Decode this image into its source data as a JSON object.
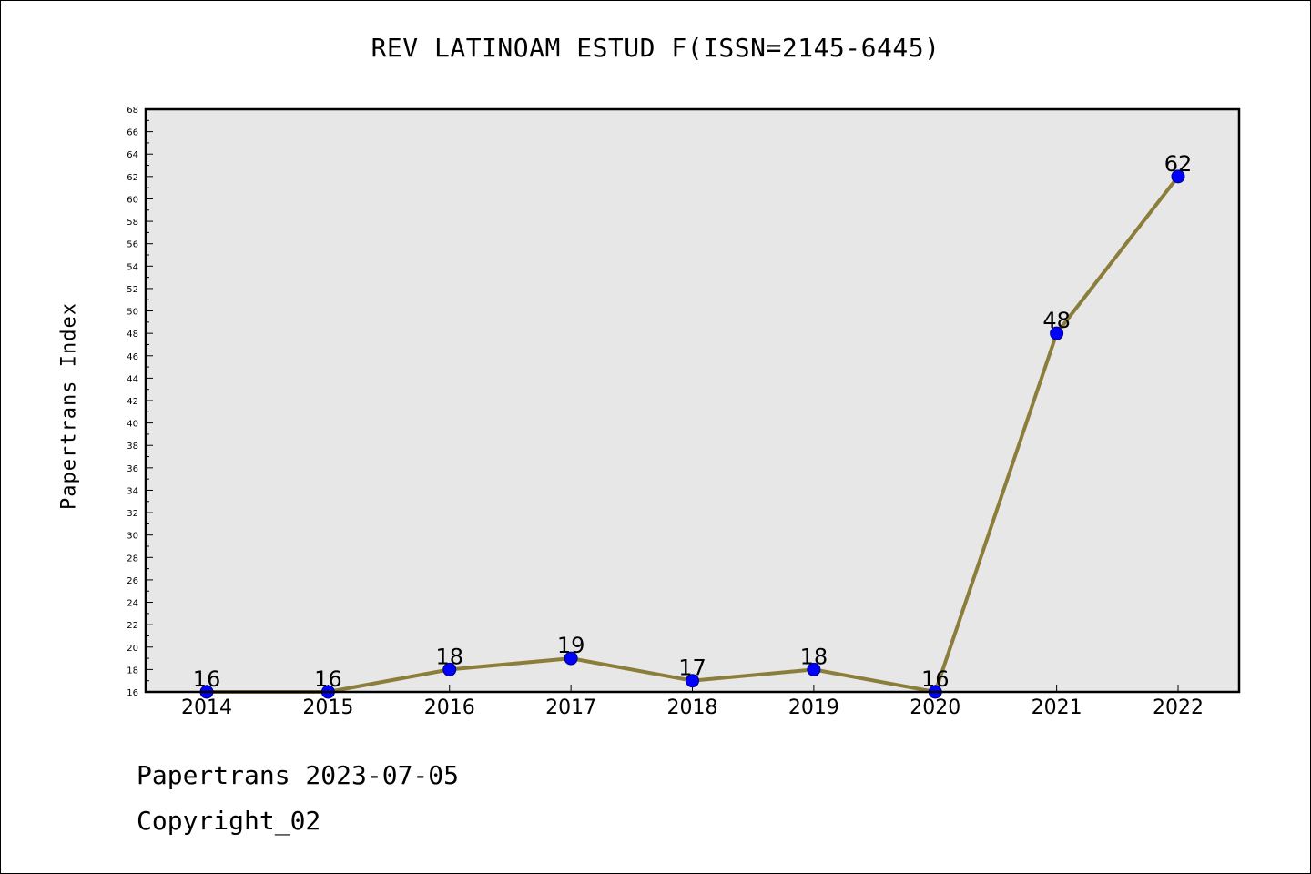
{
  "page": {
    "title": "REV LATINOAM ESTUD F(ISSN=2145-6445)",
    "footer_line1": "Papertrans 2023-07-05",
    "footer_line2": "Copyright_02"
  },
  "chart_data": {
    "type": "line",
    "title": "REV LATINOAM ESTUD F(ISSN=2145-6445)",
    "xlabel": "",
    "ylabel": "Papertrans Index",
    "categories": [
      "2014",
      "2015",
      "2016",
      "2017",
      "2018",
      "2019",
      "2020",
      "2021",
      "2022"
    ],
    "series": [
      {
        "values": [
          16,
          16,
          18,
          19,
          17,
          18,
          16,
          48,
          62
        ]
      }
    ],
    "data_labels": [
      "16",
      "16",
      "18",
      "19",
      "17",
      "18",
      "16",
      "48",
      "62"
    ],
    "ylim": [
      16,
      68
    ],
    "yticks": [
      16,
      18,
      20,
      22,
      24,
      26,
      28,
      30,
      32,
      34,
      36,
      38,
      40,
      42,
      44,
      46,
      48,
      50,
      52,
      54,
      56,
      58,
      60,
      62,
      64,
      66,
      68
    ],
    "grid": false,
    "legend": "none",
    "colors": {
      "line": "#8B7D3A",
      "marker_fill": "#0000FF",
      "marker_stroke": "#000080",
      "plot_background": "#E7E7E7"
    }
  }
}
